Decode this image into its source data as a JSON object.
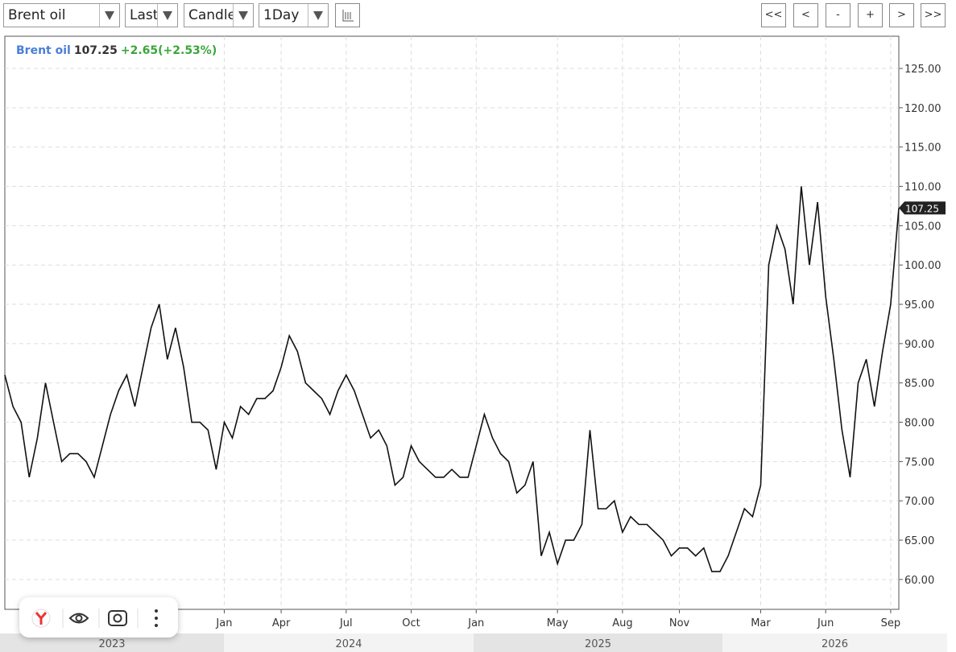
{
  "toolbar": {
    "symbol": "Brent oil",
    "price_field": "Last",
    "chart_style": "Candle",
    "interval": "1Day",
    "nav": [
      "<<",
      "<",
      "-",
      "+",
      ">",
      ">>"
    ]
  },
  "chart_data": {
    "type": "line",
    "legend": {
      "name": "Brent oil",
      "last_price": 107.25,
      "change": "+2.65(+2.53%)"
    },
    "categories": [
      null,
      null,
      null,
      null,
      null,
      null,
      null,
      null,
      null,
      null,
      null,
      null,
      null,
      null,
      null,
      null,
      null,
      null,
      null,
      null,
      null,
      null,
      null,
      null,
      null,
      null,
      null,
      "Jan",
      null,
      null,
      null,
      null,
      null,
      null,
      "Apr",
      null,
      null,
      null,
      null,
      null,
      null,
      null,
      "Jul",
      null,
      null,
      null,
      null,
      null,
      null,
      null,
      "Oct",
      null,
      null,
      null,
      null,
      null,
      null,
      null,
      "Jan",
      null,
      null,
      null,
      null,
      null,
      null,
      null,
      null,
      null,
      "May",
      null,
      null,
      null,
      null,
      null,
      null,
      null,
      "Aug",
      null,
      null,
      null,
      null,
      null,
      null,
      "Nov",
      null,
      null,
      null,
      null,
      null,
      null,
      null,
      null,
      null,
      "Mar",
      null,
      null,
      null,
      null,
      null,
      null,
      null,
      "Jun",
      null,
      null,
      null,
      null,
      null,
      null,
      null,
      "Sep",
      null
    ],
    "x_groups": [
      "2023",
      "2024",
      "2025",
      "2026"
    ],
    "series": [
      {
        "name": "Brent oil",
        "color": "#111111",
        "values": [
          86,
          82,
          80,
          73,
          78,
          85,
          80,
          75,
          76,
          76,
          75,
          73,
          77,
          81,
          84,
          86,
          82,
          87,
          92,
          95,
          88,
          92,
          87,
          80,
          80,
          79,
          74,
          80,
          78,
          82,
          81,
          83,
          83,
          84,
          87,
          91,
          89,
          85,
          84,
          83,
          81,
          84,
          86,
          84,
          81,
          78,
          79,
          77,
          72,
          73,
          77,
          75,
          74,
          73,
          73,
          74,
          73,
          73,
          77,
          81,
          78,
          76,
          75,
          71,
          72,
          75,
          63,
          66,
          62,
          65,
          65,
          67,
          79,
          69,
          69,
          70,
          66,
          68,
          67,
          67,
          66,
          65,
          63,
          64,
          64,
          63,
          64,
          61,
          61,
          63,
          66,
          69,
          68,
          72,
          100,
          105,
          102,
          95,
          110,
          100,
          108,
          96,
          88,
          79,
          73,
          85,
          88,
          82,
          89,
          95,
          107.25
        ]
      }
    ],
    "ylim": [
      56.2,
      129.1
    ],
    "yticks": [
      {
        "value": 60,
        "label": "60.00"
      },
      {
        "value": 65,
        "label": "65.00"
      },
      {
        "value": 70,
        "label": "70.00"
      },
      {
        "value": 75,
        "label": "75.00"
      },
      {
        "value": 80,
        "label": "80.00"
      },
      {
        "value": 85,
        "label": "85.00"
      },
      {
        "value": 90,
        "label": "90.00"
      },
      {
        "value": 95,
        "label": "95.00"
      },
      {
        "value": 100,
        "label": "100.00"
      },
      {
        "value": 105,
        "label": "105.00"
      },
      {
        "value": 110,
        "label": "110.00"
      },
      {
        "value": 115,
        "label": "115.00"
      },
      {
        "value": 120,
        "label": "120.00"
      },
      {
        "value": 125,
        "label": "125.00"
      }
    ],
    "grid": true
  }
}
